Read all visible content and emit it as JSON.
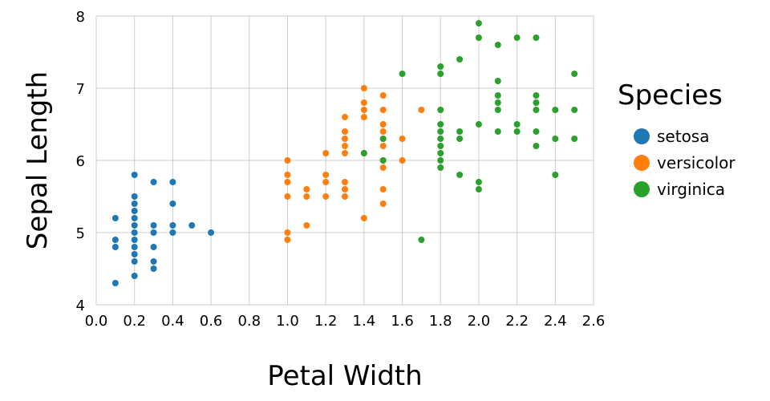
{
  "chart_data": {
    "type": "scatter",
    "xlabel": "Petal Width",
    "ylabel": "Sepal Length",
    "xlim": [
      0,
      2.6
    ],
    "ylim": [
      4,
      8
    ],
    "xticks": [
      "0.0",
      "0.2",
      "0.4",
      "0.6",
      "0.8",
      "1.0",
      "1.2",
      "1.4",
      "1.6",
      "1.8",
      "2.0",
      "2.2",
      "2.4",
      "2.6"
    ],
    "yticks": [
      "4",
      "5",
      "6",
      "7",
      "8"
    ],
    "grid": true,
    "legend": {
      "title": "Species",
      "placement": "right"
    },
    "series": [
      {
        "name": "setosa",
        "color": "#1f77b4",
        "points": [
          [
            0.1,
            5.2
          ],
          [
            0.1,
            4.9
          ],
          [
            0.1,
            4.8
          ],
          [
            0.1,
            4.3
          ],
          [
            0.2,
            5.8
          ],
          [
            0.2,
            5.5
          ],
          [
            0.2,
            5.4
          ],
          [
            0.2,
            5.3
          ],
          [
            0.2,
            5.2
          ],
          [
            0.2,
            5.1
          ],
          [
            0.2,
            5.0
          ],
          [
            0.2,
            4.9
          ],
          [
            0.2,
            4.8
          ],
          [
            0.2,
            4.7
          ],
          [
            0.2,
            4.6
          ],
          [
            0.2,
            4.4
          ],
          [
            0.3,
            5.7
          ],
          [
            0.3,
            5.1
          ],
          [
            0.3,
            5.0
          ],
          [
            0.3,
            4.8
          ],
          [
            0.3,
            4.6
          ],
          [
            0.3,
            4.5
          ],
          [
            0.4,
            5.7
          ],
          [
            0.4,
            5.4
          ],
          [
            0.4,
            5.1
          ],
          [
            0.4,
            5.0
          ],
          [
            0.5,
            5.1
          ],
          [
            0.6,
            5.0
          ]
        ]
      },
      {
        "name": "versicolor",
        "color": "#ff7f0e",
        "points": [
          [
            1.0,
            6.0
          ],
          [
            1.0,
            5.8
          ],
          [
            1.0,
            5.7
          ],
          [
            1.0,
            5.5
          ],
          [
            1.0,
            5.0
          ],
          [
            1.0,
            4.9
          ],
          [
            1.1,
            5.6
          ],
          [
            1.1,
            5.5
          ],
          [
            1.1,
            5.1
          ],
          [
            1.2,
            6.1
          ],
          [
            1.2,
            5.8
          ],
          [
            1.2,
            5.7
          ],
          [
            1.2,
            5.5
          ],
          [
            1.3,
            6.6
          ],
          [
            1.3,
            6.4
          ],
          [
            1.3,
            6.3
          ],
          [
            1.3,
            6.2
          ],
          [
            1.3,
            6.1
          ],
          [
            1.3,
            5.7
          ],
          [
            1.3,
            5.6
          ],
          [
            1.3,
            5.5
          ],
          [
            1.4,
            7.0
          ],
          [
            1.4,
            6.8
          ],
          [
            1.4,
            6.7
          ],
          [
            1.4,
            6.6
          ],
          [
            1.4,
            6.1
          ],
          [
            1.4,
            5.2
          ],
          [
            1.5,
            6.9
          ],
          [
            1.5,
            6.7
          ],
          [
            1.5,
            6.5
          ],
          [
            1.5,
            6.4
          ],
          [
            1.5,
            6.3
          ],
          [
            1.5,
            6.2
          ],
          [
            1.5,
            6.0
          ],
          [
            1.5,
            5.9
          ],
          [
            1.5,
            5.6
          ],
          [
            1.5,
            5.4
          ],
          [
            1.6,
            6.3
          ],
          [
            1.6,
            6.0
          ],
          [
            1.7,
            6.7
          ]
        ]
      },
      {
        "name": "virginica",
        "color": "#2ca02c",
        "points": [
          [
            1.4,
            6.1
          ],
          [
            1.5,
            6.3
          ],
          [
            1.5,
            6.0
          ],
          [
            1.6,
            7.2
          ],
          [
            1.7,
            4.9
          ],
          [
            1.8,
            7.3
          ],
          [
            1.8,
            7.2
          ],
          [
            1.8,
            6.7
          ],
          [
            1.8,
            6.5
          ],
          [
            1.8,
            6.4
          ],
          [
            1.8,
            6.3
          ],
          [
            1.8,
            6.2
          ],
          [
            1.8,
            6.1
          ],
          [
            1.8,
            6.0
          ],
          [
            1.8,
            5.9
          ],
          [
            1.9,
            7.4
          ],
          [
            1.9,
            6.4
          ],
          [
            1.9,
            6.3
          ],
          [
            1.9,
            5.8
          ],
          [
            2.0,
            7.9
          ],
          [
            2.0,
            7.7
          ],
          [
            2.0,
            6.5
          ],
          [
            2.0,
            5.7
          ],
          [
            2.0,
            5.6
          ],
          [
            2.1,
            7.6
          ],
          [
            2.1,
            7.1
          ],
          [
            2.1,
            6.9
          ],
          [
            2.1,
            6.8
          ],
          [
            2.1,
            6.7
          ],
          [
            2.1,
            6.4
          ],
          [
            2.2,
            7.7
          ],
          [
            2.2,
            6.5
          ],
          [
            2.2,
            6.4
          ],
          [
            2.3,
            7.7
          ],
          [
            2.3,
            6.9
          ],
          [
            2.3,
            6.8
          ],
          [
            2.3,
            6.7
          ],
          [
            2.3,
            6.4
          ],
          [
            2.3,
            6.2
          ],
          [
            2.4,
            6.7
          ],
          [
            2.4,
            6.3
          ],
          [
            2.4,
            5.8
          ],
          [
            2.5,
            7.2
          ],
          [
            2.5,
            6.7
          ],
          [
            2.5,
            6.3
          ]
        ]
      }
    ]
  }
}
